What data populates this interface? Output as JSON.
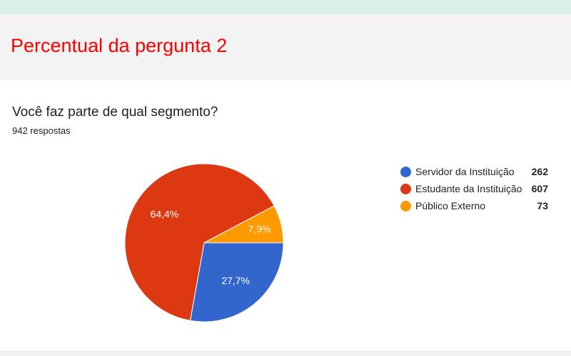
{
  "header": {
    "title": "Percentual da pergunta 2"
  },
  "question": {
    "text": "Você faz parte de qual segmento?",
    "responses": "942 respostas"
  },
  "chart_data": {
    "type": "pie",
    "categories": [
      "Servidor da Instituição",
      "Estudante da Instituição",
      "Público Externo"
    ],
    "values": [
      262,
      607,
      73
    ],
    "labels": [
      "27,7%",
      "64,4%",
      "7,9%"
    ],
    "colors": [
      "#3366cc",
      "#dc3912",
      "#ff9900"
    ],
    "legend": "right"
  }
}
